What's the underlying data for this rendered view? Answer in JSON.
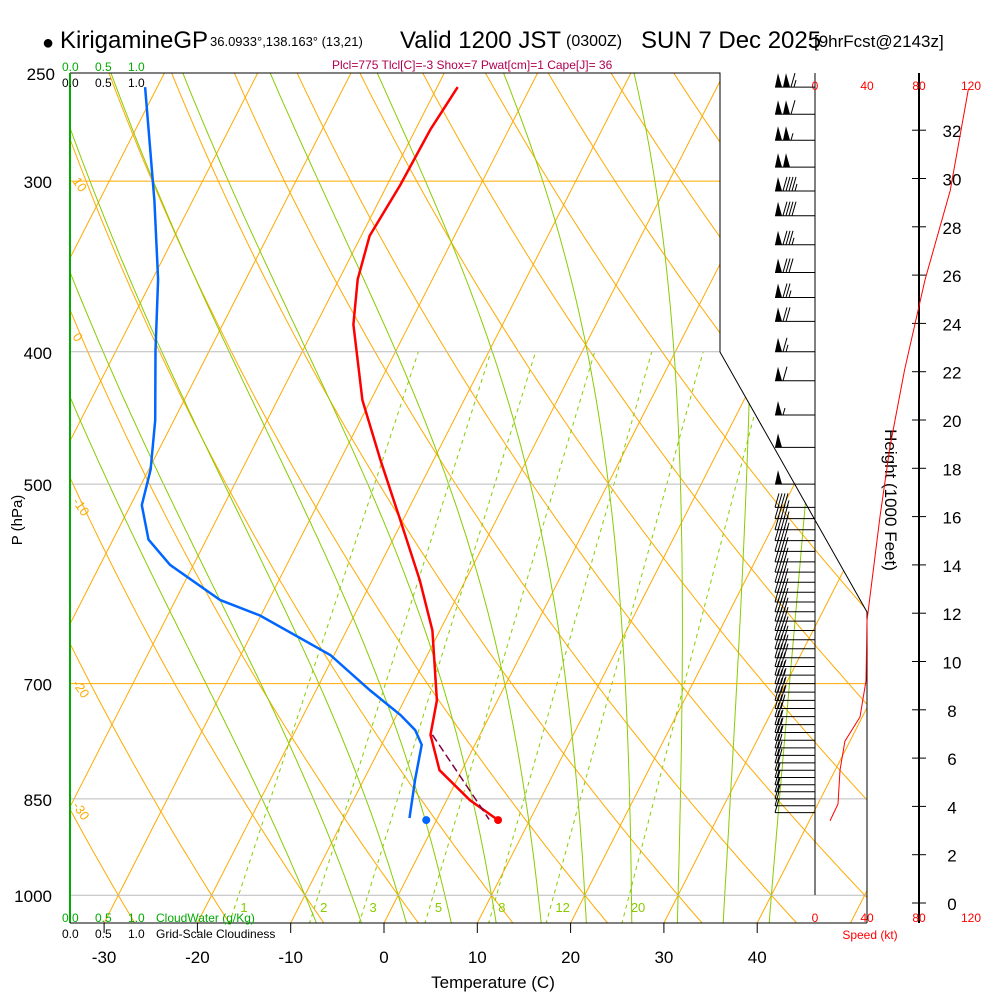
{
  "header": {
    "station": "KirigamineGP",
    "coords": "36.0933°,138.163° (13,21)",
    "valid": "Valid 1200 JST",
    "zulu": "(0300Z)",
    "date": "SUN 7 Dec 2025",
    "forecast": "[9hrFcst@2143z]",
    "indices": "Plcl=775 Tlcl[C]=-3 Shox=7 Pwat[cm]=1 Cape[J]= 36"
  },
  "colors": {
    "temp": "#ff0000",
    "dewp": "#0066ff",
    "parcel": "#800040",
    "isotherm": "#ffaa00",
    "moist": "#88cc00",
    "indices": "#b00050",
    "cloud": "#00aa00"
  },
  "chart_data": {
    "type": "line",
    "title": "Skew-T Log-P sounding",
    "xlabel": "Temperature (C)",
    "ylabel": "P (hPa)",
    "y2label": "Height (1000 Feet)",
    "x_ticks": [
      "-30",
      "-20",
      "-10",
      "0",
      "10",
      "20",
      "30",
      "40"
    ],
    "x_tick_values": [
      -30,
      -20,
      -10,
      0,
      10,
      20,
      30,
      40
    ],
    "p_ticks": [
      "250",
      "300",
      "400",
      "500",
      "700",
      "850",
      "1000"
    ],
    "p_tick_values": [
      250,
      300,
      400,
      500,
      700,
      850,
      1000
    ],
    "height_ticks": [
      "0",
      "2",
      "4",
      "6",
      "8",
      "10",
      "12",
      "14",
      "16",
      "18",
      "20",
      "22",
      "24",
      "26",
      "28",
      "30",
      "32"
    ],
    "speed_ticks": [
      "0",
      "40",
      "80",
      "120"
    ],
    "speed_label": "Speed (kt)",
    "cloud_scale": [
      "0.0",
      "0.5",
      "1.0"
    ],
    "cloudwater_label": "CloudWater (g/Kg)",
    "cloudiness_label": "Grid-Scale Cloudiness",
    "adiabat_labels": [
      "10",
      "0",
      "-10",
      "-20",
      "-30"
    ],
    "adiabat_label_p": [
      300,
      390,
      515,
      700,
      860
    ],
    "isotherm_labels": [
      "0",
      "10",
      "20",
      "30"
    ],
    "isotherm_label_p": [
      330,
      410,
      480,
      560
    ],
    "mixing_ratio_labels": [
      "1",
      "2",
      "3",
      "5",
      "8",
      "12",
      "20"
    ],
    "mixing_ratio_values": [
      1,
      2,
      3,
      5,
      8,
      12,
      20
    ],
    "series": [
      {
        "name": "Temperature",
        "p": [
          881,
          852,
          810,
          763,
          720,
          640,
          588,
          531,
          480,
          434,
          382,
          354,
          329,
          302,
          275,
          256
        ],
        "T": [
          6.6,
          2.5,
          -2.4,
          -5.3,
          -6.5,
          -10.8,
          -14.9,
          -20.3,
          -25.7,
          -30.9,
          -36.0,
          -38.0,
          -39.1,
          -38.6,
          -38.4,
          -37.8
        ]
      },
      {
        "name": "Dewpoint",
        "p": [
          878,
          823,
          776,
          757,
          738,
          708,
          667,
          624,
          608,
          573,
          549,
          518,
          488,
          449,
          399,
          354,
          310,
          256
        ],
        "T": [
          -3.0,
          -4.5,
          -5.7,
          -7.2,
          -9.6,
          -14.2,
          -20.4,
          -30.1,
          -35.2,
          -42.5,
          -46.2,
          -48.8,
          -49.8,
          -52.0,
          -55.8,
          -59.4,
          -64.1,
          -71.3
        ]
      },
      {
        "name": "Parcel",
        "p": [
          763,
          880
        ],
        "T": [
          -5.1,
          5.6
        ]
      }
    ],
    "surface": {
      "p": 881,
      "T": 6.6,
      "Td": -1.1
    },
    "wind_speed_profile": {
      "height_kft": [
        3.4,
        4.1,
        5.5,
        6.7,
        7.7,
        9.2,
        11.7,
        16.0,
        18.9,
        22.1,
        25.8,
        29.5,
        33.7
      ],
      "speed_kt": [
        11.5,
        17.7,
        19.2,
        23,
        34.6,
        39.2,
        40,
        50,
        57.7,
        69,
        84.6,
        104,
        118
      ]
    },
    "wind_barbs_p": [
      256,
      268,
      280,
      293,
      305,
      318,
      334,
      350,
      365,
      380,
      400,
      420,
      445,
      470,
      500,
      520,
      530,
      540,
      550,
      560,
      570,
      580,
      590,
      600,
      610,
      620,
      630,
      640,
      650,
      660,
      670,
      680,
      690,
      700,
      710,
      720,
      730,
      740,
      750,
      760,
      770,
      780,
      790,
      800,
      810,
      820,
      830,
      840,
      850,
      860,
      870
    ],
    "wind_barbs_kt": [
      115,
      110,
      105,
      100,
      95,
      90,
      85,
      80,
      75,
      70,
      65,
      60,
      55,
      50,
      50,
      45,
      45,
      45,
      40,
      40,
      40,
      40,
      40,
      40,
      40,
      40,
      40,
      40,
      40,
      40,
      40,
      35,
      35,
      35,
      35,
      30,
      30,
      25,
      25,
      25,
      20,
      20,
      20,
      20,
      15,
      15,
      15,
      15,
      10,
      10,
      10
    ]
  }
}
